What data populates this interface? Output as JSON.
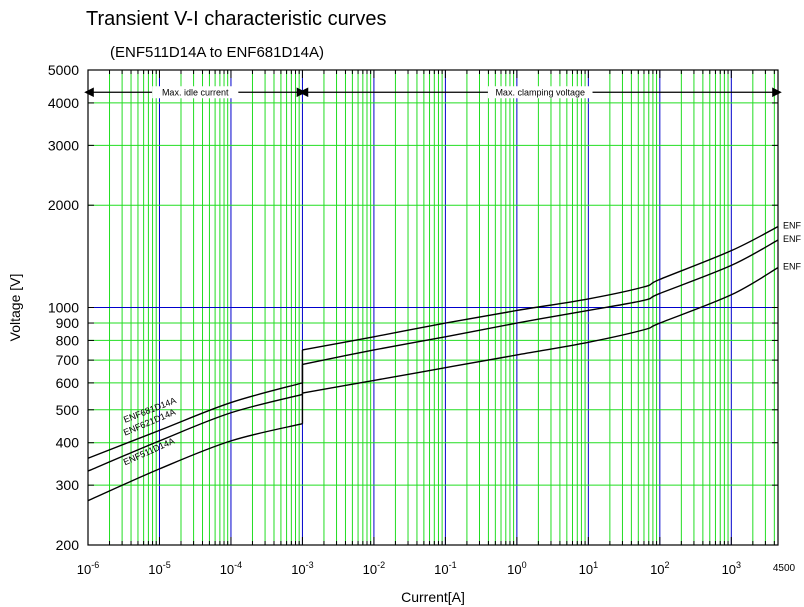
{
  "chart_data": {
    "type": "line",
    "title": "Transient V-I characteristic curves",
    "subtitle": "(ENF511D14A to ENF681D14A)",
    "xlabel": "Current[A]",
    "ylabel": "Voltage [V]",
    "x_scale": "log",
    "y_scale": "log",
    "xlim": [
      1e-06,
      4500
    ],
    "ylim": [
      200,
      5000
    ],
    "x_ticks": [
      {
        "base": "10",
        "exp": "-6",
        "value": 1e-06
      },
      {
        "base": "10",
        "exp": "-5",
        "value": 1e-05
      },
      {
        "base": "10",
        "exp": "-4",
        "value": 0.0001
      },
      {
        "base": "10",
        "exp": "-3",
        "value": 0.001
      },
      {
        "base": "10",
        "exp": "-2",
        "value": 0.01
      },
      {
        "base": "10",
        "exp": "-1",
        "value": 0.1
      },
      {
        "base": "10",
        "exp": "0",
        "value": 1
      },
      {
        "base": "10",
        "exp": "1",
        "value": 10
      },
      {
        "base": "10",
        "exp": "2",
        "value": 100
      },
      {
        "base": "10",
        "exp": "3",
        "value": 1000
      }
    ],
    "x_end_label": {
      "text": "4500",
      "value": 4500
    },
    "y_ticks": [
      {
        "text": "200",
        "value": 200
      },
      {
        "text": "300",
        "value": 300
      },
      {
        "text": "400",
        "value": 400
      },
      {
        "text": "500",
        "value": 500
      },
      {
        "text": "600",
        "value": 600
      },
      {
        "text": "700",
        "value": 700
      },
      {
        "text": "800",
        "value": 800
      },
      {
        "text": "900",
        "value": 900
      },
      {
        "text": "1000",
        "value": 1000
      },
      {
        "text": "2000",
        "value": 2000
      },
      {
        "text": "3000",
        "value": 3000
      },
      {
        "text": "4000",
        "value": 4000
      },
      {
        "text": "5000",
        "value": 5000
      }
    ],
    "grid": true,
    "colors": {
      "minor_grid": "#22dd22",
      "major_grid": "#0000cc",
      "curve": "#000000"
    },
    "regions": [
      {
        "label": "Max. idle current",
        "from": 1e-06,
        "to": 0.001,
        "y": 4300
      },
      {
        "label": "Max. clamping voltage",
        "from": 0.001,
        "to": 4500,
        "y": 4300
      }
    ],
    "series": [
      {
        "name": "ENF681D14A",
        "label_right": "ENF",
        "segments": [
          {
            "x": [
              1e-06,
              1e-05,
              0.0001,
              0.001
            ],
            "y": [
              360,
              435,
              525,
              600
            ]
          },
          {
            "x": [
              0.001,
              0.01,
              0.1,
              1,
              10,
              60,
              100,
              1000,
              4500
            ],
            "y": [
              750,
              820,
              900,
              980,
              1060,
              1150,
              1210,
              1470,
              1730
            ]
          }
        ]
      },
      {
        "name": "ENF621D14A",
        "label_right": "ENF",
        "segments": [
          {
            "x": [
              1e-06,
              1e-05,
              0.0001,
              0.001
            ],
            "y": [
              330,
              405,
              490,
              555
            ]
          },
          {
            "x": [
              0.001,
              0.01,
              0.1,
              1,
              10,
              60,
              100,
              1000,
              4500
            ],
            "y": [
              680,
              750,
              820,
              900,
              980,
              1050,
              1100,
              1330,
              1580
            ]
          }
        ]
      },
      {
        "name": "ENF511D14A",
        "label_right": "ENF",
        "segments": [
          {
            "x": [
              1e-06,
              1e-05,
              0.0001,
              0.001
            ],
            "y": [
              270,
              335,
              405,
              455
            ]
          },
          {
            "x": [
              0.001,
              0.01,
              0.1,
              1,
              10,
              60,
              100,
              1000,
              4500
            ],
            "y": [
              560,
              610,
              665,
              725,
              790,
              860,
              900,
              1090,
              1310
            ]
          }
        ]
      }
    ]
  }
}
